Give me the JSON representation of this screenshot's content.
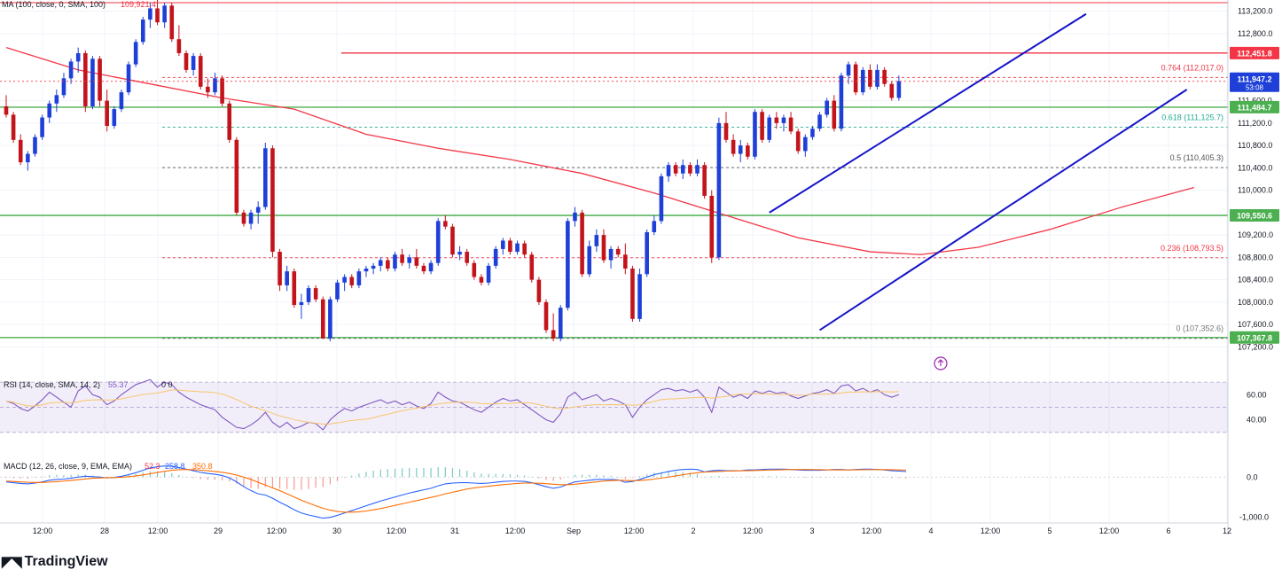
{
  "chart_data": {
    "type": "candlestick",
    "symbol_scale": "linear",
    "y_range": [
      107000,
      113400
    ],
    "x_tick_labels": [
      "12:00",
      "28",
      "12:00",
      "29",
      "12:00",
      "30",
      "12:00",
      "31",
      "12:00",
      "Sep",
      "12:00",
      "2",
      "12:00",
      "3",
      "12:00",
      "4",
      "12:00",
      "5",
      "12:00",
      "6",
      "12"
    ],
    "y_tick_labels": [
      "113,200.0",
      "112,800.0",
      "111,600.0",
      "111,200.0",
      "110,800.0",
      "110,400.0",
      "110,000.0",
      "109,200.0",
      "108,800.0",
      "108,400.0",
      "108,000.0",
      "107,600.0",
      "107,200.0"
    ],
    "ma_legend": "MA (100, close, 0, SMA, 100)",
    "ma_legend_value": "109,921.4",
    "last_price": "111,947.2",
    "countdown": "53:08",
    "price_tags": [
      {
        "text": "112,451.8",
        "price": 112451.8,
        "color": "#f23645"
      },
      {
        "text": "111,484.7",
        "price": 111484.7,
        "color": "#4caf50"
      },
      {
        "text": "109,550.6",
        "price": 109550.6,
        "color": "#4caf50"
      },
      {
        "text": "107,367.8",
        "price": 107367.8,
        "color": "#4caf50"
      }
    ],
    "horizontal_levels": [
      {
        "price": 112451.8,
        "color": "#f23645",
        "kind": "resistance"
      },
      {
        "price": 111484.7,
        "color": "#4caf50",
        "kind": "support"
      },
      {
        "price": 109550.6,
        "color": "#4caf50",
        "kind": "support"
      },
      {
        "price": 107367.8,
        "color": "#4caf50",
        "kind": "support"
      }
    ],
    "fibonacci": [
      {
        "label": "0.764 (112,017.0)",
        "price": 112017.0,
        "color": "#f23645"
      },
      {
        "label": "0.618 (111,125.7)",
        "price": 111125.7,
        "color": "#22ab94"
      },
      {
        "label": "0.5 (110,405.3)",
        "price": 110405.3,
        "color": "#555555"
      },
      {
        "label": "0.236 (108,793.5)",
        "price": 108793.5,
        "color": "#f23645"
      },
      {
        "label": "0 (107,352.6)",
        "price": 107352.6,
        "color": "#777777"
      }
    ],
    "channel_lines": [
      {
        "from": {
          "bar": 106,
          "price": 109600
        },
        "to": {
          "bar": 150,
          "price": 113150
        }
      },
      {
        "from": {
          "bar": 113,
          "price": 107500
        },
        "to": {
          "bar": 164,
          "price": 111800
        }
      }
    ],
    "ma_line": [
      {
        "bar": 0,
        "price": 112550
      },
      {
        "bar": 10,
        "price": 112150
      },
      {
        "bar": 20,
        "price": 111900
      },
      {
        "bar": 30,
        "price": 111650
      },
      {
        "bar": 40,
        "price": 111450
      },
      {
        "bar": 50,
        "price": 111000
      },
      {
        "bar": 60,
        "price": 110750
      },
      {
        "bar": 70,
        "price": 110550
      },
      {
        "bar": 80,
        "price": 110300
      },
      {
        "bar": 90,
        "price": 109950
      },
      {
        "bar": 100,
        "price": 109550
      },
      {
        "bar": 110,
        "price": 109150
      },
      {
        "bar": 120,
        "price": 108900
      },
      {
        "bar": 127,
        "price": 108850
      },
      {
        "bar": 135,
        "price": 108980
      },
      {
        "bar": 145,
        "price": 109300
      },
      {
        "bar": 155,
        "price": 109700
      },
      {
        "bar": 165,
        "price": 110050
      }
    ],
    "ohlc": [
      [
        111500,
        111700,
        111300,
        111350
      ],
      [
        111350,
        111400,
        110850,
        110900
      ],
      [
        110900,
        111000,
        110450,
        110500
      ],
      [
        110500,
        110700,
        110350,
        110650
      ],
      [
        110650,
        111000,
        110600,
        110950
      ],
      [
        110950,
        111350,
        110900,
        111300
      ],
      [
        111300,
        111600,
        111200,
        111550
      ],
      [
        111550,
        111800,
        111400,
        111700
      ],
      [
        111700,
        112100,
        111650,
        112000
      ],
      [
        112000,
        112350,
        111900,
        112300
      ],
      [
        112300,
        112550,
        112100,
        112450
      ],
      [
        112450,
        112500,
        111400,
        111500
      ],
      [
        111500,
        112400,
        111450,
        112350
      ],
      [
        112350,
        112400,
        111500,
        111600
      ],
      [
        111600,
        111800,
        111050,
        111150
      ],
      [
        111150,
        111500,
        111100,
        111450
      ],
      [
        111450,
        111800,
        111400,
        111750
      ],
      [
        111750,
        112300,
        111700,
        112250
      ],
      [
        112250,
        112700,
        112200,
        112650
      ],
      [
        112650,
        113100,
        112600,
        113050
      ],
      [
        113050,
        113350,
        112900,
        113250
      ],
      [
        113250,
        113400,
        112950,
        113000
      ],
      [
        113000,
        113350,
        112900,
        113300
      ],
      [
        113300,
        113350,
        112650,
        112700
      ],
      [
        112700,
        112950,
        112400,
        112450
      ],
      [
        112450,
        112500,
        112100,
        112150
      ],
      [
        112150,
        112450,
        112050,
        112400
      ],
      [
        112400,
        112450,
        111800,
        111850
      ],
      [
        111850,
        112000,
        111650,
        111750
      ],
      [
        111750,
        112100,
        111700,
        112000
      ],
      [
        112000,
        112050,
        111500,
        111550
      ],
      [
        111550,
        111600,
        110850,
        110900
      ],
      [
        110900,
        110950,
        109550,
        109600
      ],
      [
        109600,
        109650,
        109350,
        109400
      ],
      [
        109400,
        109650,
        109300,
        109600
      ],
      [
        109600,
        109800,
        109400,
        109700
      ],
      [
        109700,
        110850,
        109650,
        110750
      ],
      [
        110750,
        110800,
        108800,
        108900
      ],
      [
        108900,
        108950,
        108200,
        108300
      ],
      [
        108300,
        108650,
        108200,
        108550
      ],
      [
        108550,
        108600,
        107900,
        107950
      ],
      [
        107950,
        108150,
        107700,
        108000
      ],
      [
        108000,
        108300,
        107950,
        108250
      ],
      [
        108250,
        108300,
        108000,
        108050
      ],
      [
        108050,
        108100,
        107350,
        107350
      ],
      [
        107350,
        108100,
        107300,
        108050
      ],
      [
        108050,
        108400,
        108000,
        108350
      ],
      [
        108350,
        108500,
        108200,
        108450
      ],
      [
        108450,
        108500,
        108250,
        108300
      ],
      [
        108300,
        108600,
        108250,
        108550
      ],
      [
        108550,
        108650,
        108450,
        108600
      ],
      [
        108600,
        108700,
        108500,
        108650
      ],
      [
        108650,
        108800,
        108550,
        108750
      ],
      [
        108750,
        108800,
        108550,
        108600
      ],
      [
        108600,
        108900,
        108550,
        108850
      ],
      [
        108850,
        108950,
        108650,
        108700
      ],
      [
        108700,
        108850,
        108600,
        108800
      ],
      [
        108800,
        108950,
        108600,
        108650
      ],
      [
        108650,
        108700,
        108500,
        108550
      ],
      [
        108550,
        108750,
        108500,
        108700
      ],
      [
        108700,
        109500,
        108650,
        109450
      ],
      [
        109450,
        109550,
        109300,
        109350
      ],
      [
        109350,
        109400,
        108800,
        108850
      ],
      [
        108850,
        109000,
        108750,
        108900
      ],
      [
        108900,
        108950,
        108650,
        108700
      ],
      [
        108700,
        108750,
        108400,
        108450
      ],
      [
        108450,
        108500,
        108300,
        108350
      ],
      [
        108350,
        108700,
        108300,
        108650
      ],
      [
        108650,
        109000,
        108600,
        108950
      ],
      [
        108950,
        109150,
        108850,
        109100
      ],
      [
        109100,
        109150,
        108850,
        108900
      ],
      [
        108900,
        109100,
        108850,
        109050
      ],
      [
        109050,
        109100,
        108800,
        108850
      ],
      [
        108850,
        108900,
        108350,
        108400
      ],
      [
        108400,
        108450,
        107950,
        108000
      ],
      [
        108000,
        108050,
        107450,
        107500
      ],
      [
        107500,
        107800,
        107300,
        107350
      ],
      [
        107350,
        107950,
        107300,
        107900
      ],
      [
        107900,
        109500,
        107850,
        109450
      ],
      [
        109450,
        109700,
        109350,
        109600
      ],
      [
        109600,
        109650,
        108450,
        108500
      ],
      [
        108500,
        109100,
        108450,
        109000
      ],
      [
        109000,
        109300,
        108900,
        109200
      ],
      [
        109200,
        109300,
        108700,
        108750
      ],
      [
        108750,
        109000,
        108600,
        108950
      ],
      [
        108950,
        109000,
        108800,
        108850
      ],
      [
        108850,
        109050,
        108500,
        108600
      ],
      [
        108600,
        108650,
        107650,
        107700
      ],
      [
        107700,
        108600,
        107650,
        108500
      ],
      [
        108500,
        109300,
        108450,
        109250
      ],
      [
        109250,
        109550,
        109200,
        109450
      ],
      [
        109450,
        110300,
        109400,
        110250
      ],
      [
        110250,
        110500,
        110150,
        110450
      ],
      [
        110450,
        110500,
        110250,
        110300
      ],
      [
        110300,
        110550,
        110200,
        110450
      ],
      [
        110450,
        110500,
        110250,
        110300
      ],
      [
        110300,
        110550,
        110250,
        110450
      ],
      [
        110450,
        110500,
        109850,
        109900
      ],
      [
        109900,
        110000,
        108700,
        108800
      ],
      [
        108800,
        111300,
        108750,
        111200
      ],
      [
        111200,
        111400,
        110850,
        110900
      ],
      [
        110900,
        111000,
        110600,
        110650
      ],
      [
        110650,
        110900,
        110500,
        110800
      ],
      [
        110800,
        110850,
        110550,
        110600
      ],
      [
        110600,
        111450,
        110550,
        111400
      ],
      [
        111400,
        111450,
        110850,
        110900
      ],
      [
        110900,
        111350,
        110850,
        111300
      ],
      [
        111300,
        111400,
        111100,
        111200
      ],
      [
        111200,
        111350,
        111050,
        111300
      ],
      [
        111300,
        111400,
        111000,
        111050
      ],
      [
        111050,
        111100,
        110650,
        110700
      ],
      [
        110700,
        111000,
        110600,
        110950
      ],
      [
        110950,
        111150,
        110900,
        111100
      ],
      [
        111100,
        111400,
        111050,
        111350
      ],
      [
        111350,
        111650,
        111300,
        111600
      ],
      [
        111600,
        111700,
        111050,
        111100
      ],
      [
        111100,
        112100,
        111050,
        112050
      ],
      [
        112050,
        112300,
        111900,
        112250
      ],
      [
        112250,
        112300,
        111700,
        111750
      ],
      [
        111750,
        112200,
        111700,
        112150
      ],
      [
        112150,
        112250,
        111800,
        111850
      ],
      [
        111850,
        112250,
        111800,
        112150
      ],
      [
        112150,
        112200,
        111850,
        111900
      ],
      [
        111900,
        111950,
        111600,
        111650
      ],
      [
        111650,
        112050,
        111600,
        111950
      ]
    ],
    "rsi": {
      "legend": "RSI (14, close, SMA, 14, 2)",
      "value": "55.37",
      "extra": "0  0",
      "ticks": [
        "60.00",
        "40.00"
      ],
      "band": [
        30,
        70
      ],
      "range": [
        20,
        75
      ],
      "values": [
        55,
        53,
        49,
        47,
        51,
        56,
        62,
        58,
        54,
        50,
        63,
        67,
        60,
        58,
        52,
        55,
        60,
        64,
        68,
        70,
        72,
        66,
        70,
        68,
        62,
        58,
        55,
        52,
        50,
        48,
        42,
        38,
        34,
        33,
        36,
        40,
        46,
        38,
        34,
        38,
        33,
        35,
        38,
        37,
        32,
        40,
        45,
        49,
        47,
        50,
        52,
        54,
        56,
        53,
        55,
        52,
        54,
        51,
        49,
        53,
        62,
        58,
        55,
        54,
        51,
        48,
        46,
        50,
        54,
        57,
        55,
        56,
        52,
        48,
        44,
        40,
        38,
        45,
        58,
        62,
        56,
        58,
        60,
        55,
        57,
        55,
        52,
        42,
        50,
        56,
        60,
        64,
        65,
        63,
        64,
        62,
        64,
        58,
        46,
        66,
        62,
        58,
        60,
        57,
        63,
        61,
        63,
        61,
        62,
        59,
        57,
        59,
        61,
        62,
        64,
        61,
        67,
        68,
        63,
        65,
        62,
        64,
        60,
        58,
        60
      ]
    },
    "macd": {
      "legend": "MACD (12, 26, close, 9, EMA, EMA)",
      "values_text": [
        "52.3",
        "258.8",
        "350.8"
      ],
      "ticks": [
        "0.0",
        "-1,000.0"
      ],
      "range": [
        -1150,
        450
      ],
      "macd": [
        -120,
        -140,
        -160,
        -170,
        -150,
        -120,
        -80,
        -60,
        -50,
        -30,
        0,
        20,
        10,
        0,
        -20,
        -10,
        20,
        60,
        110,
        170,
        230,
        260,
        280,
        270,
        240,
        200,
        160,
        120,
        90,
        70,
        40,
        -20,
        -120,
        -240,
        -340,
        -420,
        -450,
        -530,
        -630,
        -720,
        -820,
        -900,
        -950,
        -990,
        -1030,
        -1010,
        -960,
        -900,
        -840,
        -780,
        -720,
        -660,
        -600,
        -550,
        -500,
        -450,
        -400,
        -360,
        -320,
        -280,
        -220,
        -170,
        -150,
        -140,
        -140,
        -150,
        -160,
        -150,
        -130,
        -110,
        -100,
        -100,
        -110,
        -140,
        -190,
        -240,
        -280,
        -250,
        -180,
        -120,
        -100,
        -80,
        -60,
        -60,
        -60,
        -70,
        -130,
        -110,
        -60,
        0,
        60,
        100,
        140,
        170,
        190,
        200,
        190,
        130,
        160,
        170,
        160,
        160,
        160,
        180,
        180,
        190,
        200,
        200,
        200,
        190,
        180,
        170,
        170,
        170,
        180,
        190,
        190,
        180,
        190,
        200,
        200,
        190,
        180,
        160,
        150,
        140
      ],
      "signal": [
        -100,
        -110,
        -120,
        -130,
        -135,
        -135,
        -125,
        -115,
        -100,
        -85,
        -65,
        -45,
        -30,
        -20,
        -15,
        -12,
        -5,
        10,
        30,
        55,
        85,
        115,
        145,
        170,
        185,
        190,
        185,
        175,
        160,
        140,
        120,
        90,
        50,
        0,
        -60,
        -130,
        -200,
        -270,
        -340,
        -420,
        -500,
        -580,
        -650,
        -720,
        -780,
        -830,
        -860,
        -880,
        -880,
        -870,
        -850,
        -820,
        -790,
        -750,
        -710,
        -670,
        -630,
        -590,
        -550,
        -510,
        -470,
        -420,
        -380,
        -340,
        -300,
        -270,
        -250,
        -230,
        -210,
        -190,
        -175,
        -160,
        -150,
        -150,
        -155,
        -165,
        -180,
        -190,
        -190,
        -180,
        -160,
        -140,
        -120,
        -100,
        -90,
        -80,
        -85,
        -90,
        -85,
        -70,
        -50,
        -25,
        0,
        30,
        60,
        85,
        110,
        125,
        135,
        140,
        150,
        155,
        160,
        160,
        165,
        170,
        175,
        180,
        185,
        190,
        190,
        190,
        188,
        185,
        182,
        180,
        180,
        180,
        182,
        184,
        186,
        188,
        188,
        185,
        180,
        175
      ]
    }
  }
}
